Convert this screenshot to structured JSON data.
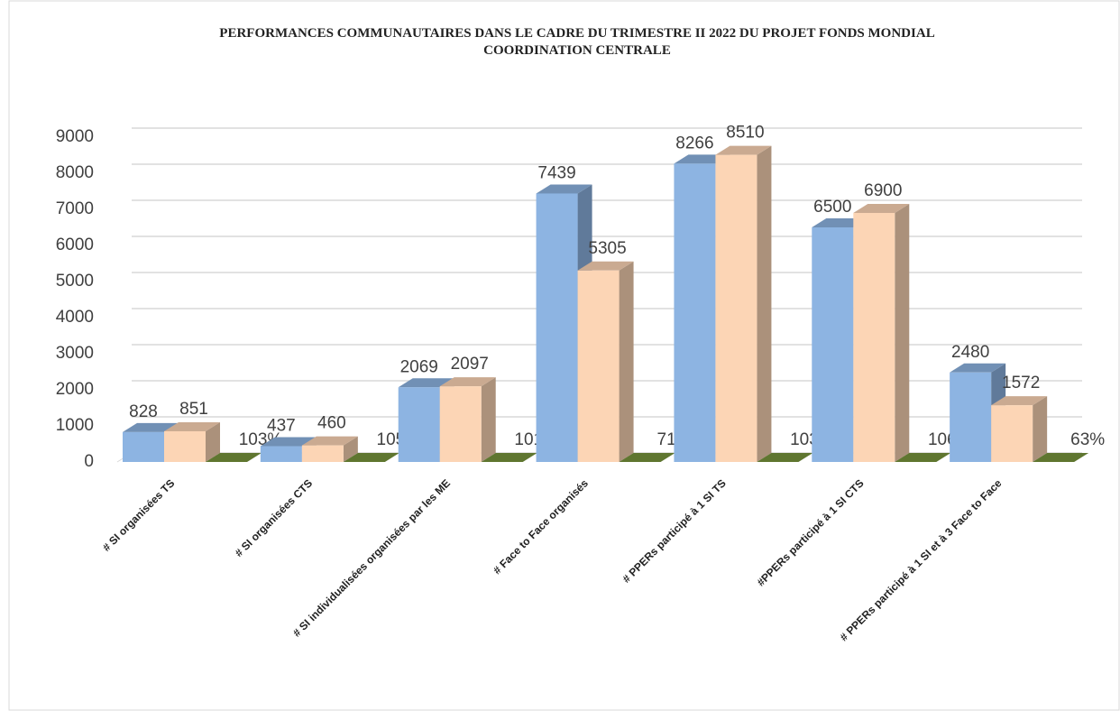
{
  "chart_data": {
    "type": "bar3d",
    "title": "PERFORMANCES COMMUNAUTAIRES  DANS LE CADRE  DU TRIMESTRE II 2022  DU PROJET FONDS MONDIAL",
    "subtitle": "COORDINATION CENTRALE",
    "categories": [
      "# SI organisées TS",
      "# SI organisées CTS",
      "# SI individualisées organisées par les ME",
      "# Face to Face organisés",
      "# PPERs participé à 1 SI TS",
      "#PPERs participé à 1 SI CTS",
      "# PPERs participé à 1 SI et à 3 Face to Face"
    ],
    "series": [
      {
        "color": "#8db4e2",
        "values": [
          828,
          437,
          2069,
          7439,
          8266,
          6500,
          2480
        ]
      },
      {
        "color": "#fcd5b5",
        "values": [
          851,
          460,
          2097,
          5305,
          8510,
          6900,
          1572
        ]
      },
      {
        "color": "#77933c",
        "values": [
          1.03,
          1.05,
          1.01,
          0.71,
          1.03,
          1.06,
          0.63
        ],
        "value_labels": [
          "103%",
          "105%",
          "101%",
          "71%",
          "103%",
          "106%",
          "63%"
        ]
      }
    ],
    "ylim": [
      0,
      9000
    ],
    "yticks": [
      0,
      1000,
      2000,
      3000,
      4000,
      5000,
      6000,
      7000,
      8000,
      9000
    ],
    "grid": true
  }
}
